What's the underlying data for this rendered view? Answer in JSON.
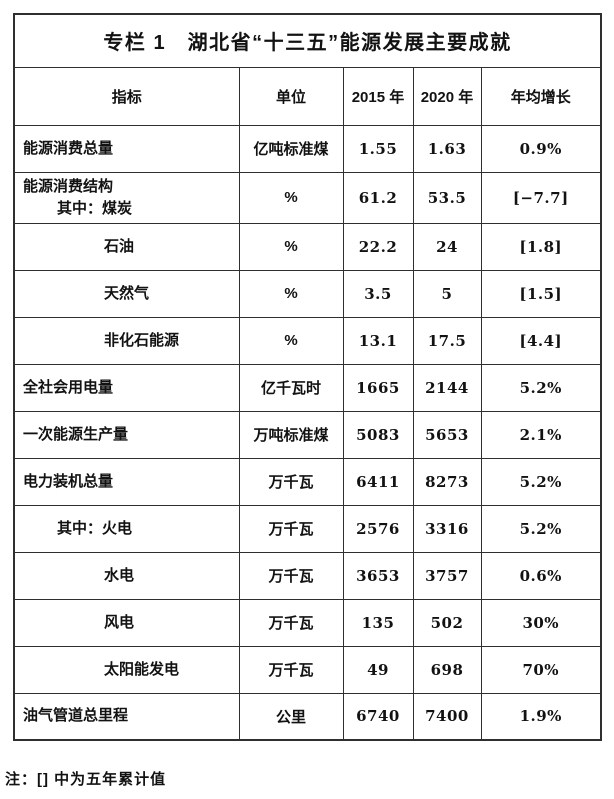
{
  "table": {
    "title": "专栏 1　湖北省“十三五”能源发展主要成就",
    "headers": [
      "指标",
      "单位",
      "2015 年",
      "2020 年",
      "年均增长"
    ],
    "rows": [
      {
        "indicator_lines": [
          {
            "text": "能源消费总量",
            "indent": 0
          }
        ],
        "unit": "亿吨标准煤",
        "v2015": "1.55",
        "v2020": "1.63",
        "growth": "0.9%"
      },
      {
        "indicator_lines": [
          {
            "text": "能源消费结构",
            "indent": 0
          },
          {
            "text": "其中：煤炭",
            "indent": 1
          }
        ],
        "unit": "%",
        "v2015": "61.2",
        "v2020": "53.5",
        "growth": "[−7.7]"
      },
      {
        "indicator_lines": [
          {
            "text": "石油",
            "indent": 2
          }
        ],
        "unit": "%",
        "v2015": "22.2",
        "v2020": "24",
        "growth": "[1.8]"
      },
      {
        "indicator_lines": [
          {
            "text": "天然气",
            "indent": 2
          }
        ],
        "unit": "%",
        "v2015": "3.5",
        "v2020": "5",
        "growth": "[1.5]"
      },
      {
        "indicator_lines": [
          {
            "text": "非化石能源",
            "indent": 2
          }
        ],
        "unit": "%",
        "v2015": "13.1",
        "v2020": "17.5",
        "growth": "[4.4]"
      },
      {
        "indicator_lines": [
          {
            "text": "全社会用电量",
            "indent": 0
          }
        ],
        "unit": "亿千瓦时",
        "v2015": "1665",
        "v2020": "2144",
        "growth": "5.2%"
      },
      {
        "indicator_lines": [
          {
            "text": "一次能源生产量",
            "indent": 0
          }
        ],
        "unit": "万吨标准煤",
        "v2015": "5083",
        "v2020": "5653",
        "growth": "2.1%"
      },
      {
        "indicator_lines": [
          {
            "text": "电力装机总量",
            "indent": 0
          }
        ],
        "unit": "万千瓦",
        "v2015": "6411",
        "v2020": "8273",
        "growth": "5.2%"
      },
      {
        "indicator_lines": [
          {
            "text": "其中：火电",
            "indent": 1
          }
        ],
        "unit": "万千瓦",
        "v2015": "2576",
        "v2020": "3316",
        "growth": "5.2%"
      },
      {
        "indicator_lines": [
          {
            "text": "水电",
            "indent": 2
          }
        ],
        "unit": "万千瓦",
        "v2015": "3653",
        "v2020": "3757",
        "growth": "0.6%"
      },
      {
        "indicator_lines": [
          {
            "text": "风电",
            "indent": 2
          }
        ],
        "unit": "万千瓦",
        "v2015": "135",
        "v2020": "502",
        "growth": "30%"
      },
      {
        "indicator_lines": [
          {
            "text": "太阳能发电",
            "indent": 2
          }
        ],
        "unit": "万千瓦",
        "v2015": "49",
        "v2020": "698",
        "growth": "70%"
      },
      {
        "indicator_lines": [
          {
            "text": "油气管道总里程",
            "indent": 0
          }
        ],
        "unit": "公里",
        "v2015": "6740",
        "v2020": "7400",
        "growth": "1.9%"
      }
    ],
    "note": "注：[] 中为五年累计值"
  },
  "colors": {
    "border": "#2f2f2f",
    "text": "#121212",
    "background": "#ffffff"
  }
}
